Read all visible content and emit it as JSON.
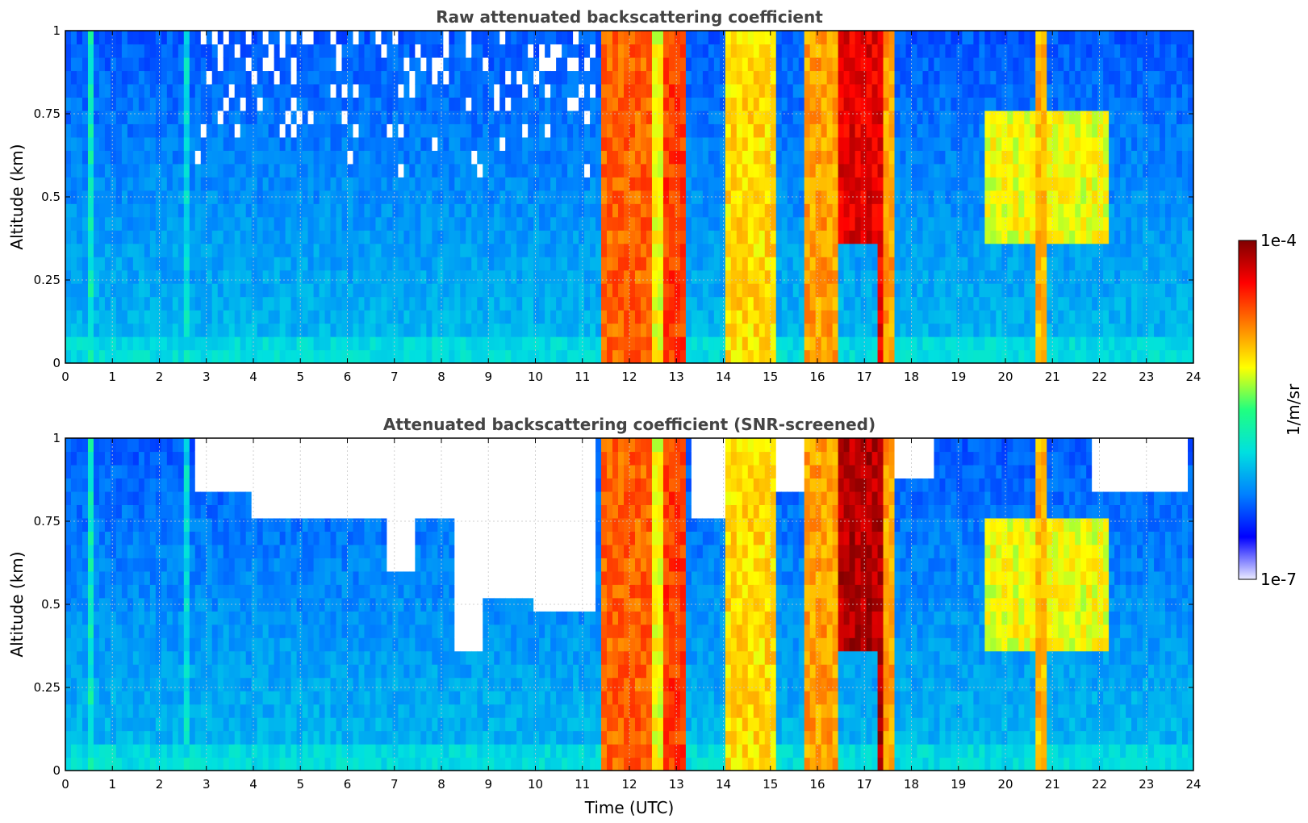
{
  "chart_data": [
    {
      "type": "heatmap",
      "title": "Raw attenuated backscattering coefficient",
      "xlabel": "",
      "ylabel": "Altitude (km)",
      "xlim": [
        0,
        24
      ],
      "ylim": [
        0,
        1
      ],
      "x_ticks": [
        "0",
        "1",
        "2",
        "3",
        "4",
        "5",
        "6",
        "7",
        "8",
        "9",
        "10",
        "11",
        "12",
        "13",
        "14",
        "15",
        "16",
        "17",
        "18",
        "19",
        "20",
        "21",
        "22",
        "23",
        "24"
      ],
      "y_ticks": [
        "0",
        "0.25",
        "0.5",
        "0.75",
        "1"
      ],
      "grid": true,
      "screened": false,
      "features": [
        {
          "start": 0.5,
          "end": 0.65,
          "from": 0,
          "to": 1,
          "level": 0.42,
          "label": "narrow-vertical-band"
        },
        {
          "start": 2.55,
          "end": 2.65,
          "from": 0,
          "to": 1,
          "level": 0.38,
          "label": "narrow-vertical-band"
        },
        {
          "start": 11.35,
          "end": 12.45,
          "from": 0.02,
          "to": 1,
          "level": 0.78,
          "label": "precipitation-band"
        },
        {
          "start": 12.45,
          "end": 12.7,
          "from": 0.02,
          "to": 1,
          "level": 0.62,
          "label": "precipitation-band"
        },
        {
          "start": 12.7,
          "end": 13.25,
          "from": 0.02,
          "to": 1,
          "level": 0.82,
          "label": "precipitation-band"
        },
        {
          "start": 14.0,
          "end": 15.15,
          "from": 0.02,
          "to": 1,
          "level": 0.66,
          "label": "precipitation-band"
        },
        {
          "start": 15.7,
          "end": 16.5,
          "from": 0.02,
          "to": 1,
          "level": 0.72,
          "label": "precipitation-band"
        },
        {
          "start": 16.5,
          "end": 17.45,
          "from": 0.35,
          "to": 1,
          "level": 0.9,
          "label": "cloud"
        },
        {
          "start": 17.3,
          "end": 17.45,
          "from": 0,
          "to": 1,
          "level": 0.88,
          "label": "precipitation-band"
        },
        {
          "start": 17.45,
          "end": 17.65,
          "from": 0,
          "to": 1,
          "level": 0.72,
          "label": "precipitation-band"
        },
        {
          "start": 19.6,
          "end": 22.2,
          "from": 0.35,
          "to": 0.75,
          "level": 0.62,
          "label": "cloud"
        },
        {
          "start": 20.7,
          "end": 20.9,
          "from": 0,
          "to": 1,
          "level": 0.7,
          "label": "narrow-vertical-band"
        }
      ]
    },
    {
      "type": "heatmap",
      "title": "Attenuated backscattering coefficient (SNR-screened)",
      "xlabel": "Time (UTC)",
      "ylabel": "Altitude (km)",
      "xlim": [
        0,
        24
      ],
      "ylim": [
        0,
        1
      ],
      "x_ticks": [
        "0",
        "1",
        "2",
        "3",
        "4",
        "5",
        "6",
        "7",
        "8",
        "9",
        "10",
        "11",
        "12",
        "13",
        "14",
        "15",
        "16",
        "17",
        "18",
        "19",
        "20",
        "21",
        "22",
        "23",
        "24"
      ],
      "y_ticks": [
        "0",
        "0.25",
        "0.5",
        "0.75",
        "1"
      ],
      "grid": true,
      "screened": true,
      "screened_regions": [
        {
          "start": 2.7,
          "end": 4.0,
          "from": 0.85,
          "to": 1
        },
        {
          "start": 4.0,
          "end": 6.8,
          "from": 0.78,
          "to": 1
        },
        {
          "start": 6.8,
          "end": 7.5,
          "from": 0.62,
          "to": 1
        },
        {
          "start": 7.5,
          "end": 8.3,
          "from": 0.78,
          "to": 1
        },
        {
          "start": 8.3,
          "end": 8.9,
          "from": 0.38,
          "to": 1
        },
        {
          "start": 8.9,
          "end": 10.0,
          "from": 0.52,
          "to": 1
        },
        {
          "start": 10.0,
          "end": 11.3,
          "from": 0.5,
          "to": 1
        },
        {
          "start": 13.3,
          "end": 14.0,
          "from": 0.78,
          "to": 1
        },
        {
          "start": 15.15,
          "end": 15.7,
          "from": 0.85,
          "to": 1
        },
        {
          "start": 17.6,
          "end": 18.5,
          "from": 0.9,
          "to": 1
        },
        {
          "start": 21.8,
          "end": 23.9,
          "from": 0.85,
          "to": 1
        }
      ],
      "features": [
        {
          "start": 0.5,
          "end": 0.65,
          "from": 0,
          "to": 1,
          "level": 0.42,
          "label": "narrow-vertical-band"
        },
        {
          "start": 2.55,
          "end": 2.65,
          "from": 0,
          "to": 1,
          "level": 0.38,
          "label": "narrow-vertical-band"
        },
        {
          "start": 11.35,
          "end": 12.45,
          "from": 0.02,
          "to": 1,
          "level": 0.78,
          "label": "precipitation-band"
        },
        {
          "start": 12.45,
          "end": 12.7,
          "from": 0.02,
          "to": 1,
          "level": 0.62,
          "label": "precipitation-band"
        },
        {
          "start": 12.7,
          "end": 13.25,
          "from": 0.02,
          "to": 1,
          "level": 0.82,
          "label": "precipitation-band"
        },
        {
          "start": 14.0,
          "end": 15.15,
          "from": 0.02,
          "to": 1,
          "level": 0.66,
          "label": "precipitation-band"
        },
        {
          "start": 15.7,
          "end": 16.5,
          "from": 0.02,
          "to": 1,
          "level": 0.72,
          "label": "precipitation-band"
        },
        {
          "start": 16.5,
          "end": 17.45,
          "from": 0.35,
          "to": 1,
          "level": 0.95,
          "label": "cloud"
        },
        {
          "start": 17.3,
          "end": 17.45,
          "from": 0,
          "to": 1,
          "level": 0.95,
          "label": "precipitation-band"
        },
        {
          "start": 17.45,
          "end": 17.65,
          "from": 0,
          "to": 1,
          "level": 0.72,
          "label": "precipitation-band"
        },
        {
          "start": 19.6,
          "end": 22.2,
          "from": 0.35,
          "to": 0.75,
          "level": 0.62,
          "label": "cloud"
        },
        {
          "start": 20.7,
          "end": 20.9,
          "from": 0,
          "to": 1,
          "level": 0.7,
          "label": "narrow-vertical-band"
        }
      ]
    }
  ],
  "colorbar": {
    "label": "1/m/sr",
    "min_label": "1e-7",
    "max_label": "1e-4",
    "colormap": [
      "#ebebff",
      "#0000ff",
      "#0080ff",
      "#00e0e0",
      "#20ff80",
      "#ffff00",
      "#ff8000",
      "#ff0000",
      "#800000"
    ]
  }
}
